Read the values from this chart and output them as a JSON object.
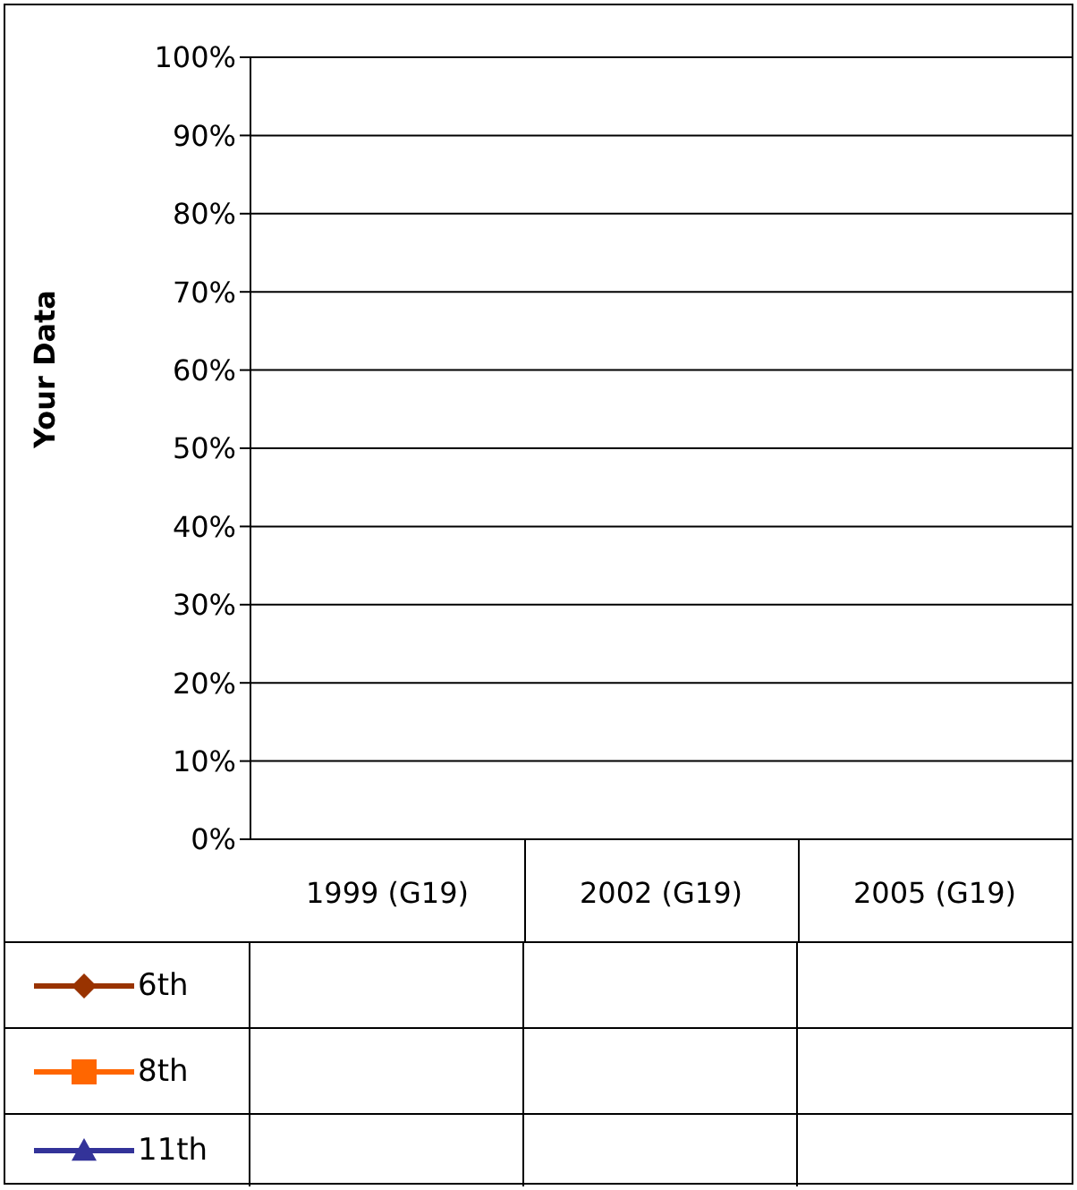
{
  "chart_data": {
    "type": "line",
    "ylabel": "Your Data",
    "categories": [
      "1999 (G19)",
      "2002 (G19)",
      "2005 (G19)"
    ],
    "series": [
      {
        "name": "6th",
        "color": "#993300",
        "marker": "diamond",
        "values": [
          null,
          null,
          null
        ]
      },
      {
        "name": "8th",
        "color": "#ff6600",
        "marker": "square",
        "values": [
          null,
          null,
          null
        ]
      },
      {
        "name": "11th",
        "color": "#333399",
        "marker": "triangle",
        "values": [
          null,
          null,
          null
        ]
      }
    ],
    "ylim": [
      0,
      100
    ],
    "yticks": [
      {
        "value": 0,
        "label": "0%"
      },
      {
        "value": 10,
        "label": "10%"
      },
      {
        "value": 20,
        "label": "20%"
      },
      {
        "value": 30,
        "label": "30%"
      },
      {
        "value": 40,
        "label": "40%"
      },
      {
        "value": 50,
        "label": "50%"
      },
      {
        "value": 60,
        "label": "60%"
      },
      {
        "value": 70,
        "label": "70%"
      },
      {
        "value": 80,
        "label": "80%"
      },
      {
        "value": 90,
        "label": "90%"
      },
      {
        "value": 100,
        "label": "100%"
      }
    ],
    "grid": "y",
    "legend": "bottom",
    "line_style": "solid"
  }
}
